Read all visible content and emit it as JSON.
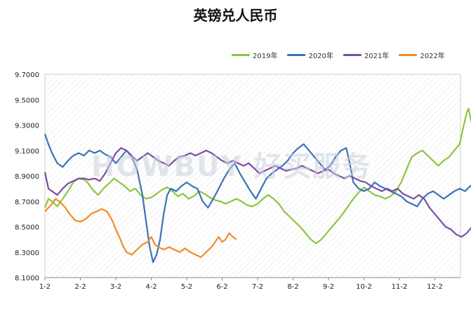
{
  "chart_data": {
    "type": "line",
    "title": "英镑兑人民币",
    "watermark": "HOWBUY 好买服务",
    "x_labels": [
      "1-2",
      "2-2",
      "3-2",
      "4-2",
      "5-2",
      "6-2",
      "7-2",
      "8-2",
      "9-2",
      "10-2",
      "11-2",
      "12-2"
    ],
    "y_ticks": [
      "9.7000",
      "9.5000",
      "9.3000",
      "9.1000",
      "8.9000",
      "8.7000",
      "8.5000",
      "8.3000",
      "8.1000"
    ],
    "ylim": [
      8.1,
      9.7
    ],
    "grid": "diagonal-hatch",
    "legend_position": "top-right",
    "series": [
      {
        "name": "2019年",
        "color": "#8cc63f",
        "points": [
          [
            0,
            8.65
          ],
          [
            0.1,
            8.72
          ],
          [
            0.2,
            8.7
          ],
          [
            0.35,
            8.66
          ],
          [
            0.5,
            8.72
          ],
          [
            0.65,
            8.78
          ],
          [
            0.8,
            8.85
          ],
          [
            0.95,
            8.88
          ],
          [
            1.1,
            8.87
          ],
          [
            1.2,
            8.85
          ],
          [
            1.35,
            8.79
          ],
          [
            1.5,
            8.75
          ],
          [
            1.65,
            8.8
          ],
          [
            1.8,
            8.84
          ],
          [
            1.95,
            8.88
          ],
          [
            2.1,
            8.85
          ],
          [
            2.25,
            8.82
          ],
          [
            2.4,
            8.78
          ],
          [
            2.55,
            8.8
          ],
          [
            2.7,
            8.75
          ],
          [
            2.85,
            8.72
          ],
          [
            3.0,
            8.73
          ],
          [
            3.15,
            8.76
          ],
          [
            3.3,
            8.79
          ],
          [
            3.45,
            8.81
          ],
          [
            3.6,
            8.78
          ],
          [
            3.75,
            8.74
          ],
          [
            3.9,
            8.76
          ],
          [
            4.05,
            8.72
          ],
          [
            4.2,
            8.74
          ],
          [
            4.35,
            8.78
          ],
          [
            4.5,
            8.76
          ],
          [
            4.65,
            8.73
          ],
          [
            4.8,
            8.71
          ],
          [
            4.95,
            8.7
          ],
          [
            5.1,
            8.68
          ],
          [
            5.25,
            8.7
          ],
          [
            5.4,
            8.72
          ],
          [
            5.55,
            8.7
          ],
          [
            5.7,
            8.67
          ],
          [
            5.85,
            8.66
          ],
          [
            6.0,
            8.68
          ],
          [
            6.15,
            8.72
          ],
          [
            6.3,
            8.75
          ],
          [
            6.45,
            8.72
          ],
          [
            6.6,
            8.68
          ],
          [
            6.75,
            8.62
          ],
          [
            6.9,
            8.58
          ],
          [
            7.05,
            8.54
          ],
          [
            7.2,
            8.5
          ],
          [
            7.35,
            8.45
          ],
          [
            7.5,
            8.4
          ],
          [
            7.65,
            8.37
          ],
          [
            7.8,
            8.4
          ],
          [
            7.95,
            8.45
          ],
          [
            8.1,
            8.5
          ],
          [
            8.25,
            8.55
          ],
          [
            8.4,
            8.6
          ],
          [
            8.55,
            8.66
          ],
          [
            8.7,
            8.72
          ],
          [
            8.85,
            8.77
          ],
          [
            9.0,
            8.81
          ],
          [
            9.15,
            8.78
          ],
          [
            9.3,
            8.75
          ],
          [
            9.45,
            8.74
          ],
          [
            9.6,
            8.72
          ],
          [
            9.75,
            8.74
          ],
          [
            9.9,
            8.78
          ],
          [
            10.05,
            8.85
          ],
          [
            10.2,
            8.95
          ],
          [
            10.35,
            9.05
          ],
          [
            10.5,
            9.08
          ],
          [
            10.65,
            9.1
          ],
          [
            10.8,
            9.06
          ],
          [
            10.95,
            9.02
          ],
          [
            11.1,
            8.98
          ],
          [
            11.25,
            9.02
          ],
          [
            11.4,
            9.05
          ],
          [
            11.55,
            9.1
          ],
          [
            11.7,
            9.15
          ],
          [
            11.8,
            9.28
          ],
          [
            11.9,
            9.4
          ],
          [
            11.95,
            9.43
          ],
          [
            12.05,
            9.3
          ],
          [
            12.15,
            9.18
          ],
          [
            12.25,
            9.1
          ],
          [
            12.35,
            9.08
          ],
          [
            12.45,
            9.06
          ]
        ]
      },
      {
        "name": "2020年",
        "color": "#3b72b8",
        "points": [
          [
            0,
            9.23
          ],
          [
            0.1,
            9.15
          ],
          [
            0.2,
            9.08
          ],
          [
            0.35,
            9.0
          ],
          [
            0.5,
            8.97
          ],
          [
            0.65,
            9.02
          ],
          [
            0.8,
            9.06
          ],
          [
            0.95,
            9.08
          ],
          [
            1.1,
            9.06
          ],
          [
            1.25,
            9.1
          ],
          [
            1.4,
            9.08
          ],
          [
            1.55,
            9.1
          ],
          [
            1.7,
            9.07
          ],
          [
            1.85,
            9.05
          ],
          [
            2.0,
            9.0
          ],
          [
            2.15,
            9.05
          ],
          [
            2.3,
            9.1
          ],
          [
            2.45,
            9.05
          ],
          [
            2.6,
            8.95
          ],
          [
            2.75,
            8.75
          ],
          [
            2.85,
            8.55
          ],
          [
            2.95,
            8.35
          ],
          [
            3.05,
            8.22
          ],
          [
            3.15,
            8.28
          ],
          [
            3.25,
            8.4
          ],
          [
            3.35,
            8.6
          ],
          [
            3.45,
            8.75
          ],
          [
            3.55,
            8.8
          ],
          [
            3.7,
            8.78
          ],
          [
            3.85,
            8.82
          ],
          [
            4.0,
            8.85
          ],
          [
            4.15,
            8.82
          ],
          [
            4.3,
            8.8
          ],
          [
            4.45,
            8.7
          ],
          [
            4.6,
            8.65
          ],
          [
            4.75,
            8.72
          ],
          [
            4.9,
            8.8
          ],
          [
            5.05,
            8.88
          ],
          [
            5.2,
            8.95
          ],
          [
            5.35,
            9.0
          ],
          [
            5.5,
            8.92
          ],
          [
            5.65,
            8.85
          ],
          [
            5.8,
            8.78
          ],
          [
            5.95,
            8.72
          ],
          [
            6.1,
            8.8
          ],
          [
            6.25,
            8.88
          ],
          [
            6.4,
            8.92
          ],
          [
            6.55,
            8.95
          ],
          [
            6.7,
            8.98
          ],
          [
            6.85,
            9.02
          ],
          [
            7.0,
            9.08
          ],
          [
            7.15,
            9.12
          ],
          [
            7.3,
            9.15
          ],
          [
            7.45,
            9.1
          ],
          [
            7.6,
            9.05
          ],
          [
            7.75,
            9.0
          ],
          [
            7.9,
            8.95
          ],
          [
            8.05,
            8.98
          ],
          [
            8.2,
            9.05
          ],
          [
            8.35,
            9.1
          ],
          [
            8.5,
            9.12
          ],
          [
            8.6,
            9.0
          ],
          [
            8.7,
            8.85
          ],
          [
            8.85,
            8.8
          ],
          [
            9.0,
            8.78
          ],
          [
            9.15,
            8.8
          ],
          [
            9.3,
            8.85
          ],
          [
            9.45,
            8.82
          ],
          [
            9.6,
            8.8
          ],
          [
            9.75,
            8.78
          ],
          [
            9.9,
            8.76
          ],
          [
            10.05,
            8.74
          ],
          [
            10.2,
            8.7
          ],
          [
            10.35,
            8.68
          ],
          [
            10.5,
            8.66
          ],
          [
            10.65,
            8.72
          ],
          [
            10.8,
            8.76
          ],
          [
            10.95,
            8.78
          ],
          [
            11.1,
            8.75
          ],
          [
            11.25,
            8.72
          ],
          [
            11.4,
            8.75
          ],
          [
            11.55,
            8.78
          ],
          [
            11.7,
            8.8
          ],
          [
            11.85,
            8.78
          ],
          [
            12.0,
            8.82
          ],
          [
            12.15,
            8.85
          ],
          [
            12.3,
            8.82
          ],
          [
            12.45,
            8.88
          ]
        ]
      },
      {
        "name": "2021年",
        "color": "#7a4fa3",
        "points": [
          [
            0,
            8.93
          ],
          [
            0.1,
            8.8
          ],
          [
            0.2,
            8.78
          ],
          [
            0.35,
            8.75
          ],
          [
            0.5,
            8.8
          ],
          [
            0.65,
            8.84
          ],
          [
            0.8,
            8.86
          ],
          [
            0.95,
            8.88
          ],
          [
            1.1,
            8.88
          ],
          [
            1.25,
            8.87
          ],
          [
            1.4,
            8.88
          ],
          [
            1.55,
            8.86
          ],
          [
            1.7,
            8.92
          ],
          [
            1.85,
            9.0
          ],
          [
            2.0,
            9.08
          ],
          [
            2.15,
            9.12
          ],
          [
            2.3,
            9.1
          ],
          [
            2.45,
            9.06
          ],
          [
            2.6,
            9.02
          ],
          [
            2.75,
            9.05
          ],
          [
            2.9,
            9.08
          ],
          [
            3.05,
            9.05
          ],
          [
            3.2,
            9.02
          ],
          [
            3.35,
            9.0
          ],
          [
            3.5,
            8.98
          ],
          [
            3.65,
            9.02
          ],
          [
            3.8,
            9.05
          ],
          [
            3.95,
            9.06
          ],
          [
            4.1,
            9.08
          ],
          [
            4.25,
            9.06
          ],
          [
            4.4,
            9.08
          ],
          [
            4.55,
            9.1
          ],
          [
            4.7,
            9.08
          ],
          [
            4.85,
            9.05
          ],
          [
            5.0,
            9.02
          ],
          [
            5.15,
            9.0
          ],
          [
            5.3,
            9.02
          ],
          [
            5.45,
            9.0
          ],
          [
            5.6,
            8.98
          ],
          [
            5.75,
            9.0
          ],
          [
            5.9,
            8.96
          ],
          [
            6.05,
            8.92
          ],
          [
            6.2,
            8.94
          ],
          [
            6.35,
            8.96
          ],
          [
            6.5,
            8.98
          ],
          [
            6.65,
            8.96
          ],
          [
            6.8,
            8.94
          ],
          [
            6.95,
            8.95
          ],
          [
            7.1,
            8.96
          ],
          [
            7.25,
            8.98
          ],
          [
            7.4,
            8.96
          ],
          [
            7.55,
            8.94
          ],
          [
            7.7,
            8.92
          ],
          [
            7.85,
            8.94
          ],
          [
            8.0,
            8.95
          ],
          [
            8.15,
            8.92
          ],
          [
            8.3,
            8.9
          ],
          [
            8.45,
            8.88
          ],
          [
            8.6,
            8.9
          ],
          [
            8.75,
            8.88
          ],
          [
            8.9,
            8.86
          ],
          [
            9.05,
            8.85
          ],
          [
            9.2,
            8.82
          ],
          [
            9.35,
            8.8
          ],
          [
            9.5,
            8.78
          ],
          [
            9.65,
            8.8
          ],
          [
            9.8,
            8.78
          ],
          [
            9.95,
            8.8
          ],
          [
            10.1,
            8.76
          ],
          [
            10.25,
            8.74
          ],
          [
            10.4,
            8.72
          ],
          [
            10.55,
            8.75
          ],
          [
            10.7,
            8.72
          ],
          [
            10.85,
            8.65
          ],
          [
            11.0,
            8.6
          ],
          [
            11.15,
            8.55
          ],
          [
            11.3,
            8.5
          ],
          [
            11.45,
            8.48
          ],
          [
            11.6,
            8.44
          ],
          [
            11.75,
            8.42
          ],
          [
            11.9,
            8.45
          ],
          [
            12.05,
            8.5
          ],
          [
            12.2,
            8.52
          ],
          [
            12.35,
            8.55
          ],
          [
            12.45,
            8.6
          ]
        ]
      },
      {
        "name": "2022年",
        "color": "#f28c28",
        "points": [
          [
            0,
            8.62
          ],
          [
            0.1,
            8.65
          ],
          [
            0.2,
            8.68
          ],
          [
            0.3,
            8.72
          ],
          [
            0.4,
            8.7
          ],
          [
            0.55,
            8.66
          ],
          [
            0.7,
            8.6
          ],
          [
            0.85,
            8.55
          ],
          [
            1.0,
            8.54
          ],
          [
            1.15,
            8.56
          ],
          [
            1.3,
            8.6
          ],
          [
            1.45,
            8.62
          ],
          [
            1.6,
            8.64
          ],
          [
            1.75,
            8.62
          ],
          [
            1.9,
            8.55
          ],
          [
            2.0,
            8.48
          ],
          [
            2.1,
            8.42
          ],
          [
            2.2,
            8.35
          ],
          [
            2.3,
            8.3
          ],
          [
            2.45,
            8.28
          ],
          [
            2.6,
            8.32
          ],
          [
            2.75,
            8.36
          ],
          [
            2.9,
            8.38
          ],
          [
            3.0,
            8.42
          ],
          [
            3.1,
            8.36
          ],
          [
            3.2,
            8.34
          ],
          [
            3.35,
            8.32
          ],
          [
            3.5,
            8.34
          ],
          [
            3.65,
            8.32
          ],
          [
            3.8,
            8.3
          ],
          [
            3.95,
            8.33
          ],
          [
            4.1,
            8.3
          ],
          [
            4.25,
            8.28
          ],
          [
            4.4,
            8.26
          ],
          [
            4.55,
            8.3
          ],
          [
            4.7,
            8.34
          ],
          [
            4.8,
            8.38
          ],
          [
            4.9,
            8.42
          ],
          [
            5.0,
            8.38
          ],
          [
            5.1,
            8.4
          ],
          [
            5.2,
            8.45
          ],
          [
            5.3,
            8.42
          ],
          [
            5.4,
            8.4
          ]
        ]
      }
    ]
  }
}
